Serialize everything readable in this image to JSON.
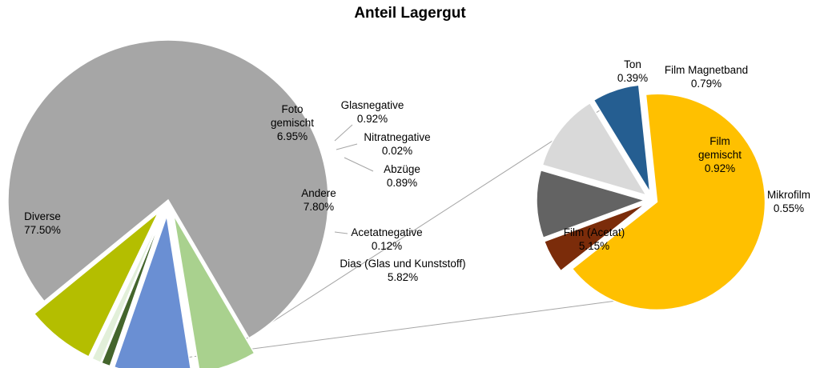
{
  "chart_data": {
    "type": "pie",
    "subtype": "bar-of-pie",
    "title": "Anteil Lagergut",
    "main_pie": {
      "slices": [
        {
          "label": "Diverse",
          "value": 77.5,
          "display": "77.50%",
          "color": "#A6A6A6",
          "exploded": false
        },
        {
          "label": "Dias (Glas und Kunststoff)",
          "value": 5.82,
          "display": "5.82%",
          "color": "#A9D18E",
          "exploded": true
        },
        {
          "label": "Acetatnegative",
          "value": 0.12,
          "display": "0.12%",
          "color": "#2F3F1F",
          "exploded": true
        },
        {
          "label": "Andere",
          "value": 7.8,
          "display": "7.80%",
          "color": "#6A8FD3",
          "exploded": true
        },
        {
          "label": "Abzüge",
          "value": 0.89,
          "display": "0.89%",
          "color": "#44652C",
          "exploded": true
        },
        {
          "label": "Nitratnegative",
          "value": 0.02,
          "display": "0.02%",
          "color": "#7F7F7F",
          "exploded": true
        },
        {
          "label": "Glasnegative",
          "value": 0.92,
          "display": "0.92%",
          "color": "#E2EFD9",
          "exploded": true
        },
        {
          "label": "Foto gemischt",
          "value": 6.95,
          "display": "6.95%",
          "color": "#B4BE00",
          "exploded": true
        }
      ]
    },
    "secondary_pie": {
      "parent": "Andere",
      "slices": [
        {
          "label": "Film (Acetat)",
          "value": 5.15,
          "display": "5.15%",
          "color": "#FFC000"
        },
        {
          "label": "Ton",
          "value": 0.39,
          "display": "0.39%",
          "color": "#7B2C0A"
        },
        {
          "label": "Film Magnetband",
          "value": 0.79,
          "display": "0.79%",
          "color": "#636363"
        },
        {
          "label": "Film gemischt",
          "value": 0.92,
          "display": "0.92%",
          "color": "#D9D9D9"
        },
        {
          "label": "Mikrofilm",
          "value": 0.55,
          "display": "0.55%",
          "color": "#255E91"
        }
      ]
    },
    "legend": "none"
  }
}
